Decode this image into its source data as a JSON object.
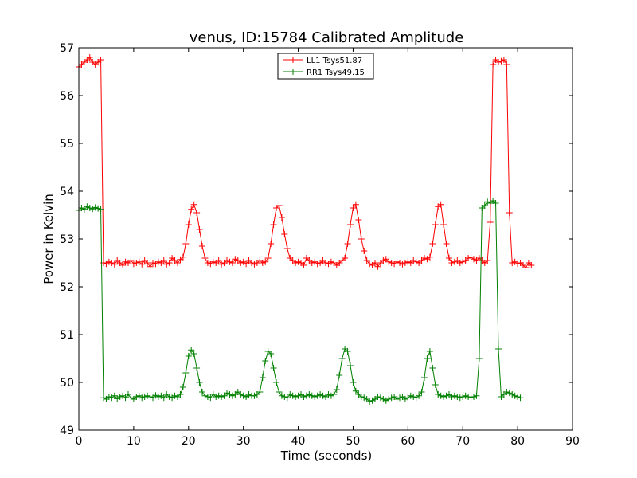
{
  "chart_data": {
    "type": "line",
    "title": "venus, ID:15784 Calibrated Amplitude",
    "xlabel": "Time (seconds)",
    "ylabel": "Power in Kelvin",
    "xlim": [
      0,
      90
    ],
    "ylim": [
      49,
      57
    ],
    "xticks": [
      "0",
      "10",
      "20",
      "30",
      "40",
      "50",
      "60",
      "70",
      "80",
      "90"
    ],
    "yticks": [
      "49",
      "50",
      "51",
      "52",
      "53",
      "54",
      "55",
      "56",
      "57"
    ],
    "grid": false,
    "legend_position": "top-center",
    "marker": "+",
    "sample_interval": 0.5,
    "series": [
      {
        "name": "LL1 Tsys51.87",
        "color": "#ff0000",
        "start_time": 0,
        "values": [
          56.6,
          56.65,
          56.7,
          56.75,
          56.8,
          56.7,
          56.65,
          56.7,
          56.75,
          52.5,
          52.48,
          52.52,
          52.5,
          52.47,
          52.55,
          52.5,
          52.45,
          52.52,
          52.5,
          52.55,
          52.48,
          52.5,
          52.52,
          52.47,
          52.55,
          52.5,
          52.42,
          52.5,
          52.48,
          52.52,
          52.5,
          52.55,
          52.47,
          52.5,
          52.6,
          52.55,
          52.5,
          52.57,
          52.62,
          52.9,
          53.3,
          53.62,
          53.72,
          53.55,
          53.2,
          52.85,
          52.6,
          52.5,
          52.48,
          52.52,
          52.5,
          52.55,
          52.47,
          52.5,
          52.55,
          52.52,
          52.5,
          52.58,
          52.55,
          52.5,
          52.52,
          52.48,
          52.55,
          52.5,
          52.47,
          52.5,
          52.55,
          52.5,
          52.52,
          52.6,
          52.9,
          53.3,
          53.65,
          53.7,
          53.45,
          53.1,
          52.8,
          52.6,
          52.55,
          52.5,
          52.52,
          52.5,
          52.45,
          52.6,
          52.55,
          52.5,
          52.52,
          52.48,
          52.5,
          52.55,
          52.5,
          52.48,
          52.52,
          52.5,
          52.45,
          52.5,
          52.55,
          52.6,
          52.9,
          53.3,
          53.65,
          53.72,
          53.4,
          53.0,
          52.75,
          52.55,
          52.48,
          52.45,
          52.5,
          52.42,
          52.5,
          52.55,
          52.58,
          52.52,
          52.5,
          52.48,
          52.52,
          52.5,
          52.47,
          52.5,
          52.52,
          52.5,
          52.55,
          52.52,
          52.5,
          52.55,
          52.6,
          52.58,
          52.62,
          52.9,
          53.3,
          53.68,
          53.72,
          53.3,
          52.9,
          52.6,
          52.5,
          52.52,
          52.55,
          52.5,
          52.52,
          52.55,
          52.6,
          52.62,
          52.58,
          52.55,
          52.6,
          52.55,
          52.5,
          52.55,
          53.35,
          56.65,
          56.75,
          56.7,
          56.72,
          56.75,
          56.65,
          53.55,
          52.5,
          52.52,
          52.48,
          52.5,
          52.45,
          52.4,
          52.5,
          52.45
        ]
      },
      {
        "name": "RR1 Tsys49.15",
        "color": "#008000",
        "start_time": 0,
        "values": [
          53.6,
          53.65,
          53.62,
          53.68,
          53.65,
          53.63,
          53.66,
          53.64,
          53.62,
          49.68,
          49.65,
          49.7,
          49.68,
          49.72,
          49.66,
          49.7,
          49.72,
          49.68,
          49.75,
          49.68,
          49.65,
          49.7,
          49.72,
          49.68,
          49.7,
          49.72,
          49.7,
          49.68,
          49.73,
          49.7,
          49.72,
          49.68,
          49.75,
          49.7,
          49.68,
          49.72,
          49.7,
          49.75,
          49.9,
          50.2,
          50.55,
          50.68,
          50.6,
          50.3,
          50.0,
          49.8,
          49.72,
          49.7,
          49.68,
          49.75,
          49.7,
          49.72,
          49.7,
          49.72,
          49.78,
          49.75,
          49.72,
          49.75,
          49.8,
          49.75,
          49.72,
          49.7,
          49.75,
          49.72,
          49.72,
          49.75,
          49.8,
          50.1,
          50.45,
          50.65,
          50.6,
          50.3,
          50.0,
          49.8,
          49.72,
          49.7,
          49.68,
          49.75,
          49.72,
          49.7,
          49.72,
          49.75,
          49.7,
          49.72,
          49.75,
          49.72,
          49.7,
          49.72,
          49.75,
          49.72,
          49.7,
          49.75,
          49.72,
          49.75,
          49.85,
          50.15,
          50.5,
          50.7,
          50.65,
          50.35,
          50.0,
          49.82,
          49.75,
          49.7,
          49.68,
          49.65,
          49.6,
          49.62,
          49.65,
          49.7,
          49.68,
          49.65,
          49.62,
          49.65,
          49.68,
          49.7,
          49.65,
          49.68,
          49.7,
          49.65,
          49.68,
          49.72,
          49.7,
          49.68,
          49.72,
          49.8,
          50.1,
          50.5,
          50.65,
          50.3,
          49.95,
          49.75,
          49.72,
          49.7,
          49.72,
          49.75,
          49.7,
          49.72,
          49.7,
          49.68,
          49.7,
          49.72,
          49.7,
          49.68,
          49.7,
          49.72,
          50.5,
          53.65,
          53.7,
          53.78,
          53.75,
          53.8,
          53.75,
          50.7,
          49.7,
          49.75,
          49.8,
          49.78,
          49.75,
          49.72,
          49.7,
          49.68
        ]
      }
    ]
  }
}
